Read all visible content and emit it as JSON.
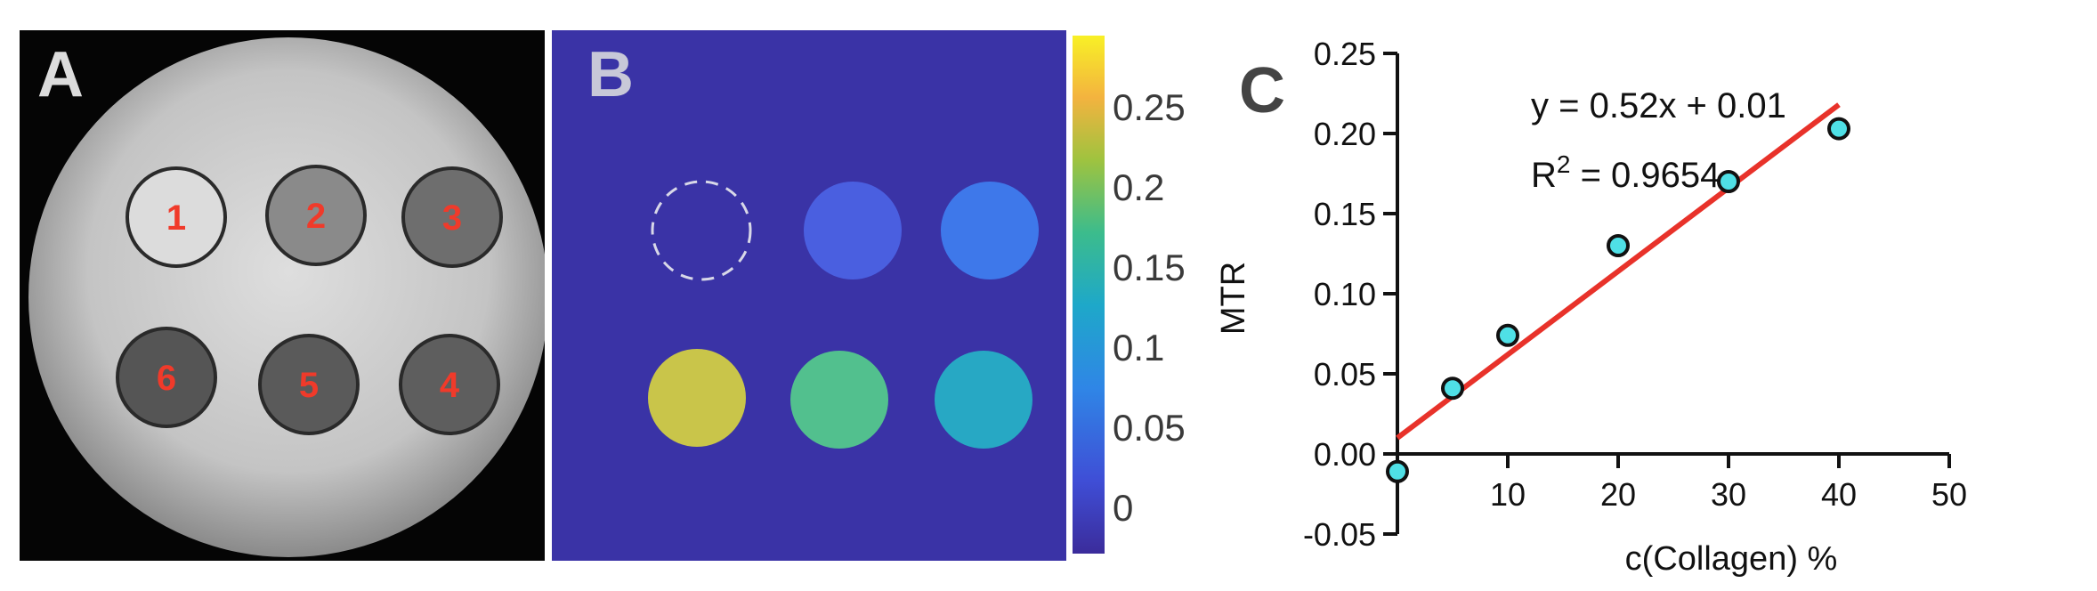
{
  "panels": {
    "a": {
      "label": "A",
      "vials": [
        "1",
        "2",
        "3",
        "6",
        "5",
        "4"
      ]
    },
    "b": {
      "label": "B",
      "colorbar_ticks": [
        "0.25",
        "0.2",
        "0.15",
        "0.1",
        "0.05",
        "0"
      ]
    },
    "c": {
      "label": "C",
      "equation": "y = 0.52x + 0.01",
      "r2_prefix": "R",
      "r2_exp": "2",
      "r2_value": " = 0.9654"
    }
  },
  "colors": {
    "fit_line": "#e8322a",
    "point_fill": "#4fe0e6",
    "label_red": "#f03a2a"
  },
  "chart_data": {
    "type": "scatter",
    "xlabel": "c(Collagen) %",
    "ylabel": "MTR",
    "xlim": [
      0,
      50
    ],
    "ylim": [
      -0.05,
      0.25
    ],
    "xticks": [
      "10",
      "20",
      "30",
      "40",
      "50"
    ],
    "yticks": [
      "0.25",
      "0.20",
      "0.15",
      "0.10",
      "0.05",
      "0.00",
      "-0.05"
    ],
    "x": [
      0,
      5,
      10,
      20,
      30,
      40
    ],
    "y": [
      -0.011,
      0.041,
      0.074,
      0.13,
      0.17,
      0.203
    ],
    "fit": {
      "slope": 0.52,
      "intercept": 0.01,
      "r2": 0.9654
    }
  }
}
